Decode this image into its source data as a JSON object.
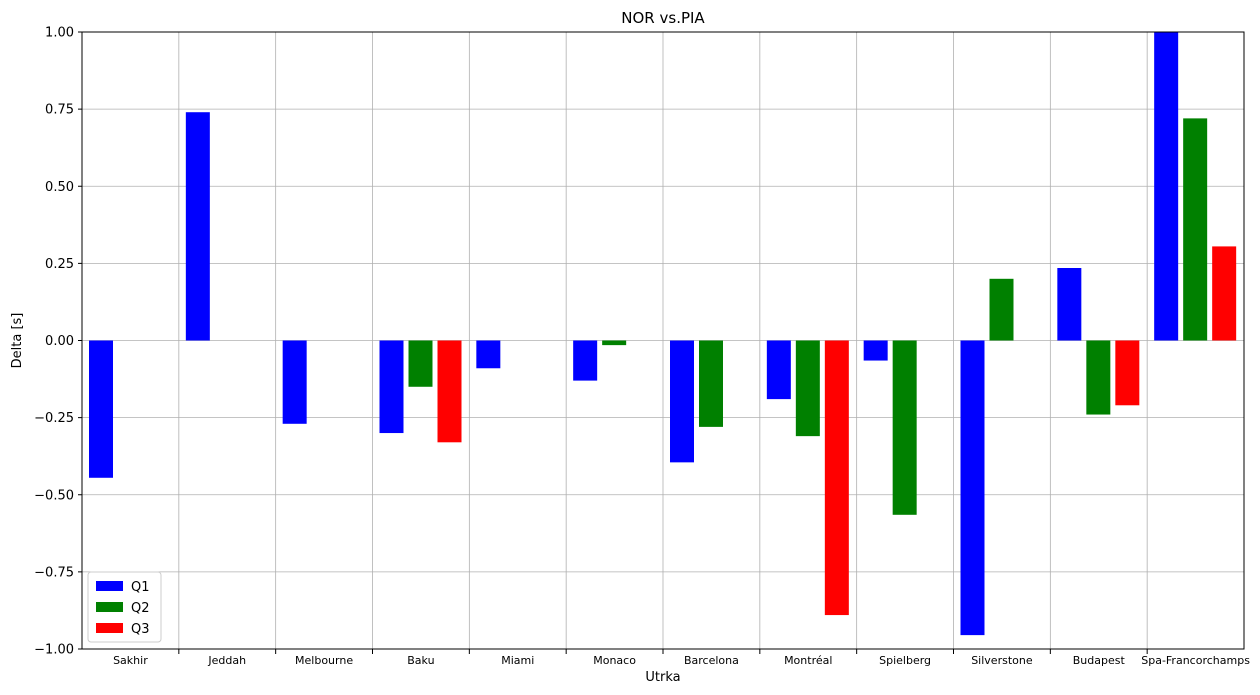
{
  "chart_data": {
    "type": "bar",
    "title": "NOR vs.PIA",
    "xlabel": "Utrka",
    "ylabel": "Delta [s]",
    "ylim": [
      -1.0,
      1.0
    ],
    "yticks": [
      "1.00",
      "0.75",
      "0.50",
      "0.25",
      "0.00",
      "−0.25",
      "−0.50",
      "−0.75",
      "−1.00"
    ],
    "ytick_values": [
      1.0,
      0.75,
      0.5,
      0.25,
      0.0,
      -0.25,
      -0.5,
      -0.75,
      -1.0
    ],
    "grid": true,
    "legend_position": "lower-left",
    "categories": [
      "Sakhir",
      "Jeddah",
      "Melbourne",
      "Baku",
      "Miami",
      "Monaco",
      "Barcelona",
      "Montréal",
      "Spielberg",
      "Silverstone",
      "Budapest",
      "Spa-Francorchamps"
    ],
    "series": [
      {
        "name": "Q1",
        "color": "#0000ff",
        "values": [
          -0.445,
          0.74,
          -0.27,
          -0.3,
          -0.09,
          -0.13,
          -0.395,
          -0.19,
          -0.065,
          -0.955,
          0.235,
          1.0
        ]
      },
      {
        "name": "Q2",
        "color": "#008000",
        "values": [
          null,
          null,
          null,
          -0.15,
          null,
          -0.015,
          -0.28,
          -0.31,
          -0.565,
          0.2,
          -0.24,
          0.72
        ]
      },
      {
        "name": "Q3",
        "color": "#ff0000",
        "values": [
          null,
          null,
          null,
          -0.33,
          null,
          null,
          null,
          -0.89,
          null,
          null,
          -0.21,
          0.305
        ]
      }
    ]
  }
}
